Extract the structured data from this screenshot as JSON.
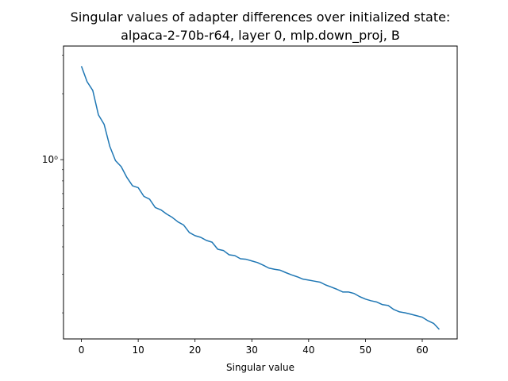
{
  "chart_data": {
    "type": "line",
    "title": "Singular values of adapter differences over initialized state:",
    "subtitle": "alpaca-2-70b-r64, layer 0, mlp.down_proj, B",
    "xlabel": "Singular value",
    "ylabel": "",
    "xscale": "linear",
    "yscale": "log",
    "xlim": [
      -3.15,
      66.15
    ],
    "ylim": [
      0.152,
      3.3
    ],
    "grid": false,
    "legend": "none",
    "xticks": [
      0,
      10,
      20,
      30,
      40,
      50,
      60
    ],
    "xtick_labels": [
      "0",
      "10",
      "20",
      "30",
      "40",
      "50",
      "60"
    ],
    "yticks": [
      1.0
    ],
    "ytick_labels": [
      "10⁰"
    ],
    "series": [
      {
        "color": "#1f77b4",
        "x": [
          0,
          1,
          2,
          3,
          4,
          5,
          6,
          7,
          8,
          9,
          10,
          11,
          12,
          13,
          14,
          15,
          16,
          17,
          18,
          19,
          20,
          21,
          22,
          23,
          24,
          25,
          26,
          27,
          28,
          29,
          30,
          31,
          32,
          33,
          34,
          35,
          36,
          37,
          38,
          39,
          40,
          41,
          42,
          43,
          44,
          45,
          46,
          47,
          48,
          49,
          50,
          51,
          52,
          53,
          54,
          55,
          56,
          57,
          58,
          59,
          60,
          61,
          62,
          63
        ],
        "y": [
          2.67,
          2.27,
          2.07,
          1.6,
          1.45,
          1.15,
          0.99,
          0.93,
          0.83,
          0.76,
          0.745,
          0.68,
          0.66,
          0.605,
          0.59,
          0.565,
          0.545,
          0.52,
          0.503,
          0.465,
          0.45,
          0.442,
          0.428,
          0.42,
          0.39,
          0.385,
          0.368,
          0.365,
          0.353,
          0.351,
          0.345,
          0.339,
          0.33,
          0.32,
          0.316,
          0.313,
          0.305,
          0.298,
          0.292,
          0.285,
          0.282,
          0.279,
          0.276,
          0.268,
          0.262,
          0.256,
          0.249,
          0.249,
          0.245,
          0.237,
          0.231,
          0.227,
          0.224,
          0.218,
          0.216,
          0.207,
          0.202,
          0.2,
          0.197,
          0.194,
          0.191,
          0.184,
          0.179,
          0.168
        ]
      }
    ]
  }
}
